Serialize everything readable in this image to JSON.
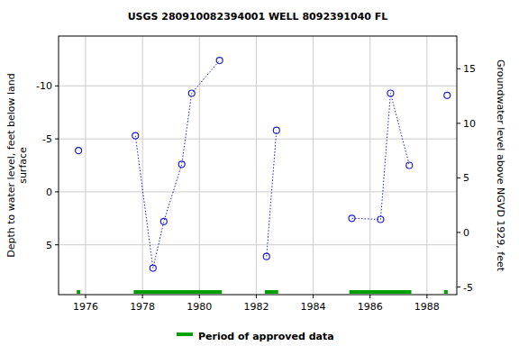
{
  "chart_data": {
    "type": "line",
    "title": "USGS 280910082394001 WELL 8092391040 FL",
    "ylabel": [
      "Depth to water level, feet below land",
      "surface"
    ],
    "y2label": "Groundwater level above NGVD 1929, feet",
    "xlim": [
      1975.05,
      1989.05
    ],
    "xticks": [
      1976,
      1978,
      1980,
      1982,
      1984,
      1986,
      1988
    ],
    "ylim": [
      9.7,
      -14.7
    ],
    "yticks": [
      -10,
      -5,
      0,
      5
    ],
    "y2lim": [
      -5.7,
      18.0
    ],
    "y2ticks": [
      -5,
      0,
      5,
      10,
      15
    ],
    "grid": true,
    "series": [
      {
        "name": "Depth to water level",
        "color": "#2222cc",
        "marker": "circle",
        "line_style": "dotted",
        "x": [
          1975.75,
          null,
          1977.75,
          1978.37,
          1978.75,
          1979.38,
          1979.73,
          1980.71,
          null,
          1982.36,
          1982.71,
          null,
          1985.36,
          1986.37,
          1986.72,
          1987.38,
          null,
          1988.71
        ],
        "values": [
          -3.9,
          null,
          -5.3,
          7.2,
          2.8,
          -2.6,
          -9.3,
          -12.4,
          null,
          6.1,
          -5.8,
          null,
          2.5,
          2.6,
          -9.3,
          -2.5,
          null,
          -9.1
        ]
      }
    ],
    "approved_periods": {
      "name": "Period of approved data",
      "color": "#00a000",
      "starts": [
        1975.69,
        1977.69,
        1982.3,
        1985.27,
        1988.6
      ],
      "ends": [
        1975.81,
        1980.79,
        1982.77,
        1987.45,
        1988.73
      ]
    }
  }
}
